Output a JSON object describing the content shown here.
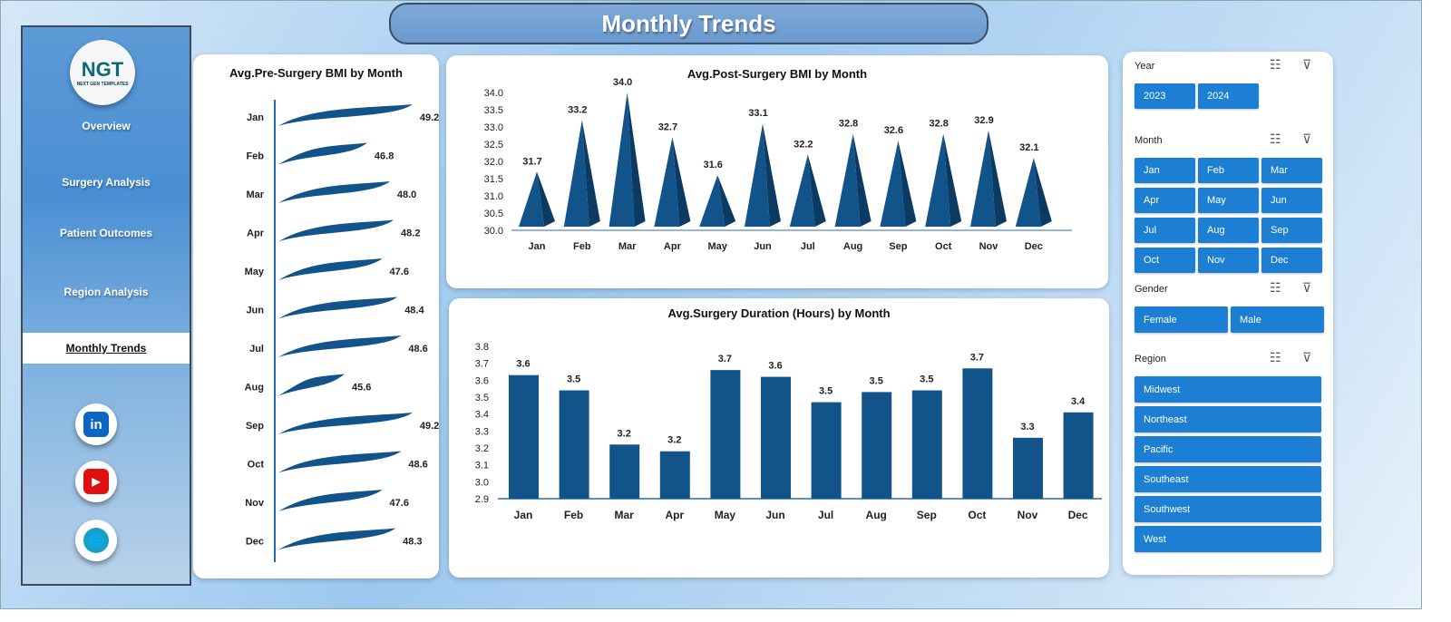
{
  "title": "Monthly Trends",
  "logo": {
    "text": "NGT",
    "tagline": "NEXT GEN TEMPLATES"
  },
  "nav": [
    {
      "label": "Overview"
    },
    {
      "label": "Surgery Analysis"
    },
    {
      "label": "Patient Outcomes"
    },
    {
      "label": "Region Analysis"
    },
    {
      "label": "Monthly Trends",
      "active": true
    }
  ],
  "social": [
    {
      "icon": "linkedin-icon",
      "glyph": "in",
      "color": "#0a66c2"
    },
    {
      "icon": "youtube-icon",
      "glyph": "▶",
      "color": "#e01010"
    },
    {
      "icon": "globe-icon",
      "glyph": "🌐",
      "color": "#1aa0c8"
    }
  ],
  "slicers": {
    "year": {
      "label": "Year",
      "items": [
        "2023",
        "2024"
      ]
    },
    "month": {
      "label": "Month",
      "items": [
        "Jan",
        "Feb",
        "Mar",
        "Apr",
        "May",
        "Jun",
        "Jul",
        "Aug",
        "Sep",
        "Oct",
        "Nov",
        "Dec"
      ]
    },
    "gender": {
      "label": "Gender",
      "items": [
        "Female",
        "Male"
      ]
    },
    "region": {
      "label": "Region",
      "items": [
        "Midwest",
        "Northeast",
        "Pacific",
        "Southeast",
        "Southwest",
        "West"
      ]
    }
  },
  "colors": {
    "bar": "#12548a",
    "button": "#1c7fd4"
  },
  "chart_data": [
    {
      "type": "bar",
      "orientation": "horizontal",
      "title": "Avg.Pre-Surgery BMI by Month",
      "categories": [
        "Jan",
        "Feb",
        "Mar",
        "Apr",
        "May",
        "Jun",
        "Jul",
        "Aug",
        "Sep",
        "Oct",
        "Nov",
        "Dec"
      ],
      "values": [
        49.2,
        46.8,
        48.0,
        48.2,
        47.6,
        48.4,
        48.6,
        45.6,
        49.2,
        48.6,
        47.6,
        48.3
      ],
      "labels": [
        "49.2",
        "46.8",
        "48.0",
        "48.2",
        "47.6",
        "48.4",
        "48.6",
        "45.6",
        "49.2",
        "48.6",
        "47.6",
        "48.3"
      ]
    },
    {
      "type": "bar",
      "shape": "pyramid",
      "title": "Avg.Post-Surgery BMI by Month",
      "categories": [
        "Jan",
        "Feb",
        "Mar",
        "Apr",
        "May",
        "Jun",
        "Jul",
        "Aug",
        "Sep",
        "Oct",
        "Nov",
        "Dec"
      ],
      "values": [
        31.7,
        33.2,
        34.0,
        32.7,
        31.6,
        33.1,
        32.2,
        32.8,
        32.6,
        32.8,
        32.9,
        32.1
      ],
      "labels": [
        "31.7",
        "33.2",
        "34.0",
        "32.7",
        "31.6",
        "33.1",
        "32.2",
        "32.8",
        "32.6",
        "32.8",
        "32.9",
        "32.1"
      ],
      "ylim": [
        30.0,
        34.0
      ],
      "yticks": [
        "30.0",
        "30.5",
        "31.0",
        "31.5",
        "32.0",
        "32.5",
        "33.0",
        "33.5",
        "34.0"
      ]
    },
    {
      "type": "bar",
      "title": "Avg.Surgery  Duration (Hours) by Month",
      "categories": [
        "Jan",
        "Feb",
        "Mar",
        "Apr",
        "May",
        "Jun",
        "Jul",
        "Aug",
        "Sep",
        "Oct",
        "Nov",
        "Dec"
      ],
      "values": [
        3.63,
        3.54,
        3.22,
        3.18,
        3.66,
        3.62,
        3.47,
        3.53,
        3.54,
        3.67,
        3.26,
        3.41
      ],
      "labels": [
        "3.6",
        "3.5",
        "3.2",
        "3.2",
        "3.7",
        "3.6",
        "3.5",
        "3.5",
        "3.5",
        "3.7",
        "3.3",
        "3.4"
      ],
      "ylim": [
        2.9,
        3.8
      ],
      "yticks": [
        "2.9",
        "3.0",
        "3.1",
        "3.2",
        "3.3",
        "3.4",
        "3.5",
        "3.6",
        "3.7",
        "3.8"
      ]
    }
  ]
}
